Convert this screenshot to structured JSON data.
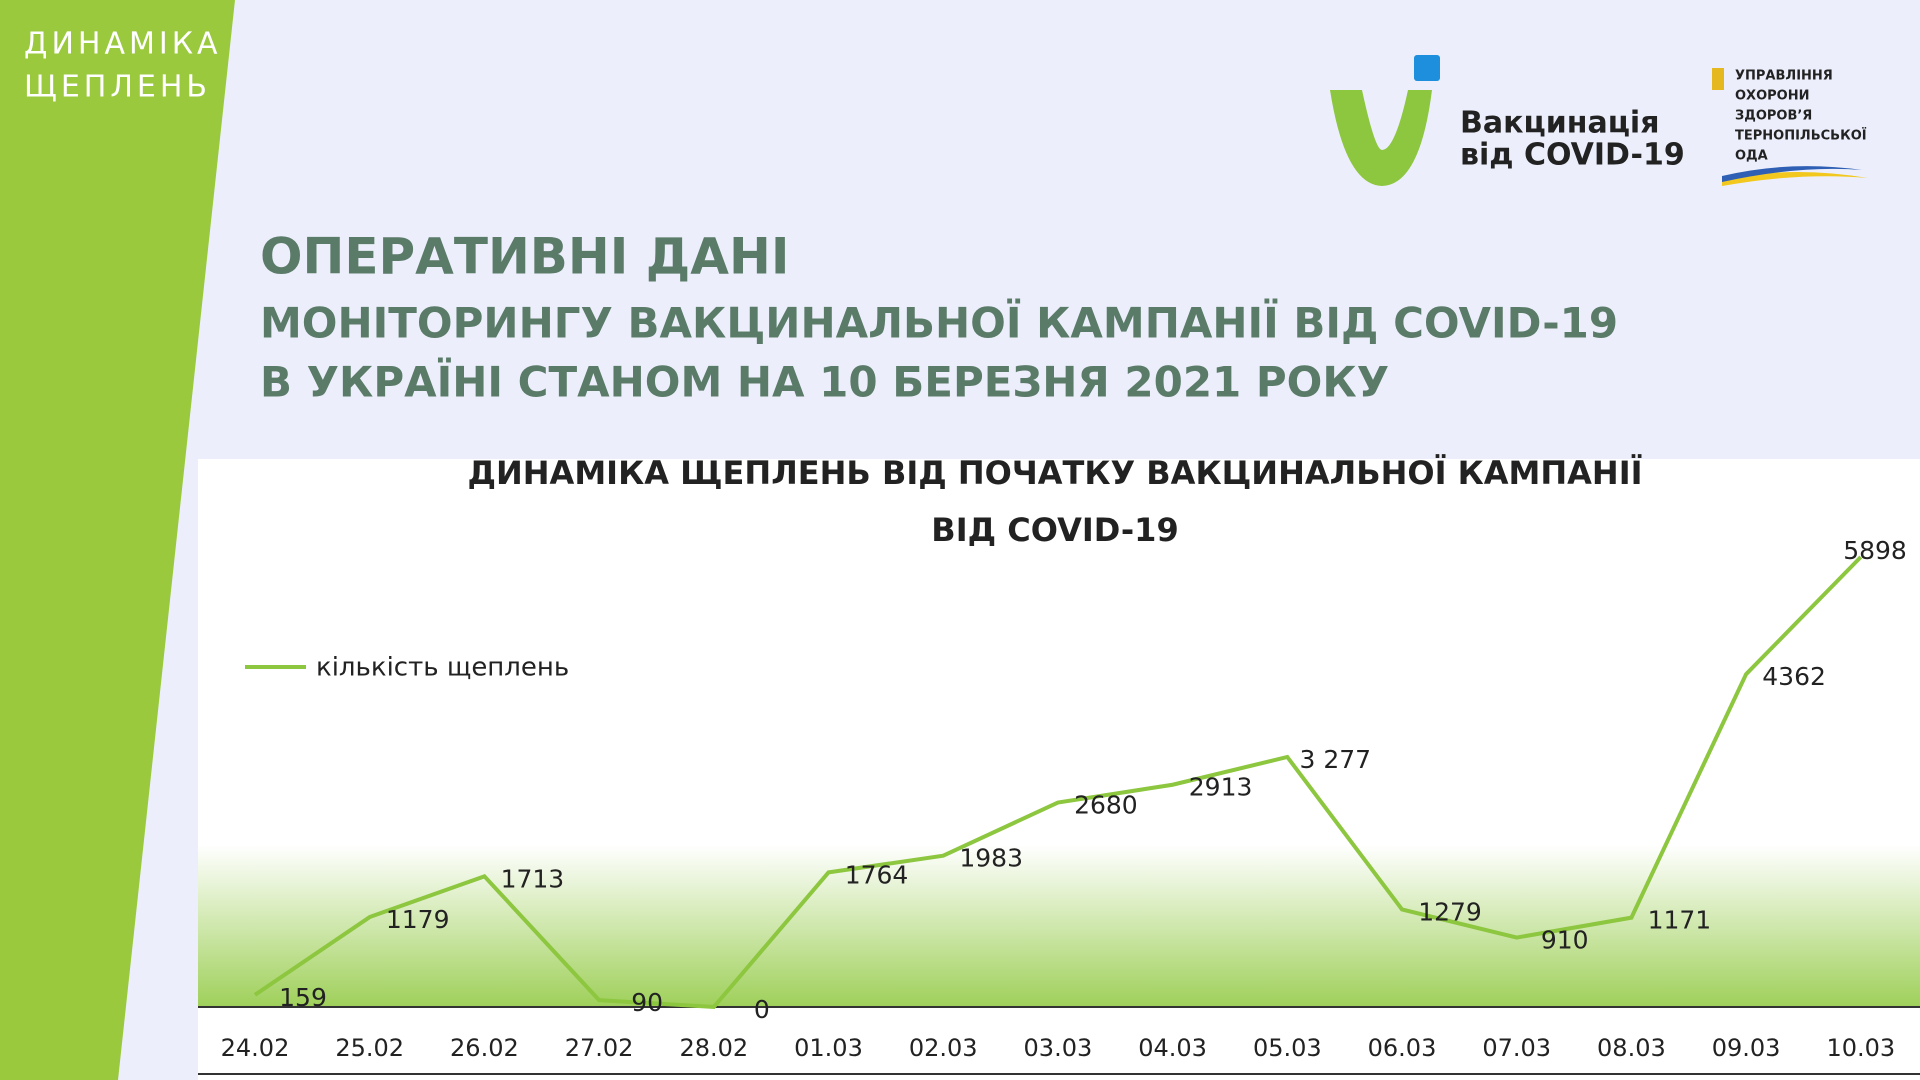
{
  "header": {
    "side_label": [
      "ДИНАМІКА",
      "ЩЕПЛЕНЬ"
    ],
    "logo_text": [
      "Вакцинація",
      "від COVID-19"
    ],
    "ministry_text": [
      "УПРАВЛІННЯ",
      "ОХОРОНИ",
      "ЗДОРОВ’Я",
      "ТЕРНОПІЛЬСЬКОЇ",
      "ОДА"
    ],
    "title": [
      "ОПЕРАТИВНІ ДАНІ",
      "МОНІТОРИНГУ ВАКЦИНАЛЬНОЇ КАМПАНІЇ  ВІД COVID-19",
      "В УКРАЇНІ СТАНОМ НА 10 БЕРЕЗНЯ 2021 РОКУ"
    ]
  },
  "chart_data": {
    "type": "line",
    "title": [
      "ДИНАМІКА ЩЕПЛЕНЬ ВІД ПОЧАТКУ ВАКЦИНАЛЬНОЇ КАМПАНІЇ",
      "ВІД COVID-19"
    ],
    "categories": [
      "24.02",
      "25.02",
      "26.02",
      "27.02",
      "28.02",
      "01.03",
      "02.03",
      "03.03",
      "04.03",
      "05.03",
      "06.03",
      "07.03",
      "08.03",
      "09.03",
      "10.03"
    ],
    "series": [
      {
        "name": "кількість щеплень",
        "color": "#8dc63f",
        "values": [
          159,
          1179,
          1713,
          90,
          0,
          1764,
          1983,
          2680,
          2913,
          3277,
          1279,
          910,
          1171,
          4362,
          5898
        ],
        "value_labels": [
          "159",
          "1179",
          "1713",
          "90",
          "0",
          "1764",
          "1983",
          "2680",
          "2913",
          "3 277",
          "1279",
          "910",
          "1171",
          "4362",
          "5898"
        ]
      }
    ],
    "legend": "upper left"
  }
}
